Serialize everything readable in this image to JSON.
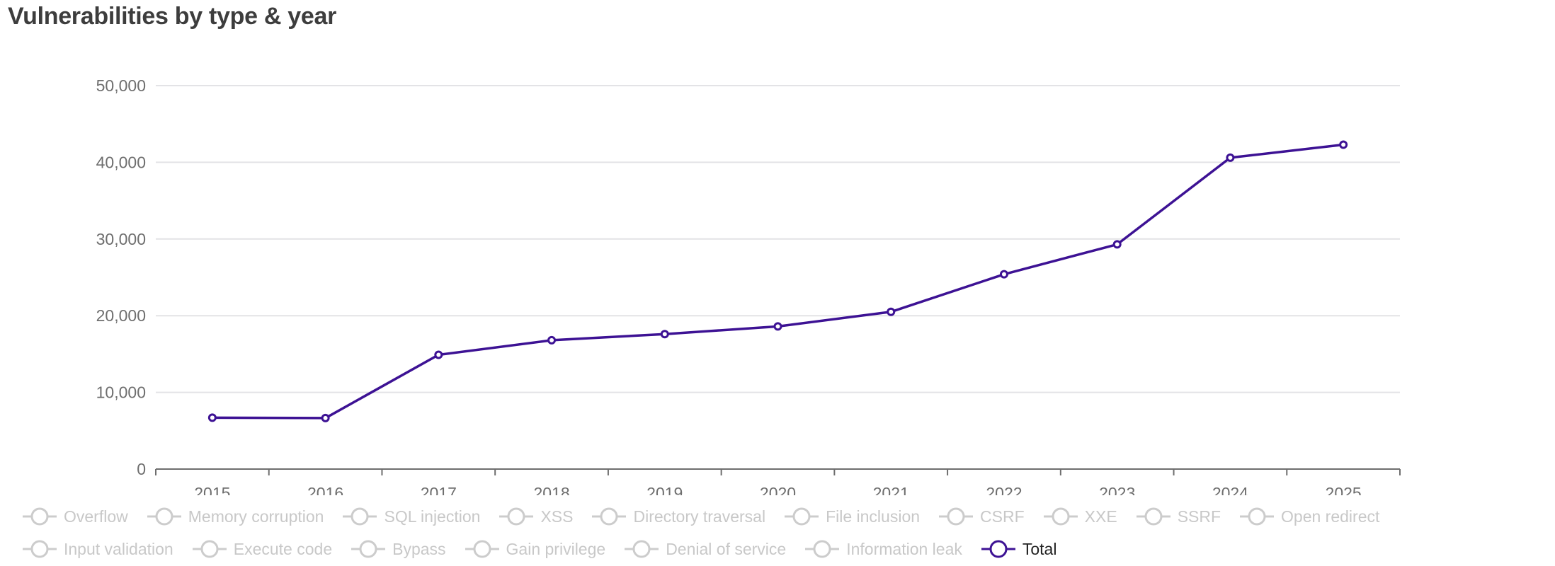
{
  "title": "Vulnerabilities by type & year",
  "colors": {
    "series": "#3d1294",
    "inactive": "#cccccc",
    "grid": "#e3e3e6",
    "axis": "#6e6e6e",
    "tick_label": "#6e6e6e"
  },
  "legend": {
    "rows": [
      [
        {
          "label": "Overflow",
          "active": false
        },
        {
          "label": "Memory corruption",
          "active": false
        },
        {
          "label": "SQL injection",
          "active": false
        },
        {
          "label": "XSS",
          "active": false
        },
        {
          "label": "Directory traversal",
          "active": false
        },
        {
          "label": "File inclusion",
          "active": false
        },
        {
          "label": "CSRF",
          "active": false
        },
        {
          "label": "XXE",
          "active": false
        },
        {
          "label": "SSRF",
          "active": false
        },
        {
          "label": "Open redirect",
          "active": false
        }
      ],
      [
        {
          "label": "Input validation",
          "active": false
        },
        {
          "label": "Execute code",
          "active": false
        },
        {
          "label": "Bypass",
          "active": false
        },
        {
          "label": "Gain privilege",
          "active": false
        },
        {
          "label": "Denial of service",
          "active": false
        },
        {
          "label": "Information leak",
          "active": false
        },
        {
          "label": "Total",
          "active": true
        }
      ]
    ]
  },
  "chart_data": {
    "type": "line",
    "title": "Vulnerabilities by type & year",
    "xlabel": "",
    "ylabel": "",
    "categories": [
      "2015",
      "2016",
      "2017",
      "2018",
      "2019",
      "2020",
      "2021",
      "2022",
      "2023",
      "2024",
      "2025"
    ],
    "yticks": [
      0,
      10000,
      20000,
      30000,
      40000,
      50000
    ],
    "ytick_labels": [
      "0",
      "10,000",
      "20,000",
      "30,000",
      "40,000",
      "50,000"
    ],
    "ylim": [
      0,
      50000
    ],
    "grid": true,
    "legend_position": "bottom",
    "series": [
      {
        "name": "Total",
        "visible": true,
        "values": [
          6700,
          6650,
          14900,
          16800,
          17600,
          18600,
          20500,
          25400,
          29300,
          40600,
          42300
        ]
      },
      {
        "name": "Overflow",
        "visible": false,
        "values": []
      },
      {
        "name": "Memory corruption",
        "visible": false,
        "values": []
      },
      {
        "name": "SQL injection",
        "visible": false,
        "values": []
      },
      {
        "name": "XSS",
        "visible": false,
        "values": []
      },
      {
        "name": "Directory traversal",
        "visible": false,
        "values": []
      },
      {
        "name": "File inclusion",
        "visible": false,
        "values": []
      },
      {
        "name": "CSRF",
        "visible": false,
        "values": []
      },
      {
        "name": "XXE",
        "visible": false,
        "values": []
      },
      {
        "name": "SSRF",
        "visible": false,
        "values": []
      },
      {
        "name": "Open redirect",
        "visible": false,
        "values": []
      },
      {
        "name": "Input validation",
        "visible": false,
        "values": []
      },
      {
        "name": "Execute code",
        "visible": false,
        "values": []
      },
      {
        "name": "Bypass",
        "visible": false,
        "values": []
      },
      {
        "name": "Gain privilege",
        "visible": false,
        "values": []
      },
      {
        "name": "Denial of service",
        "visible": false,
        "values": []
      },
      {
        "name": "Information leak",
        "visible": false,
        "values": []
      }
    ]
  }
}
